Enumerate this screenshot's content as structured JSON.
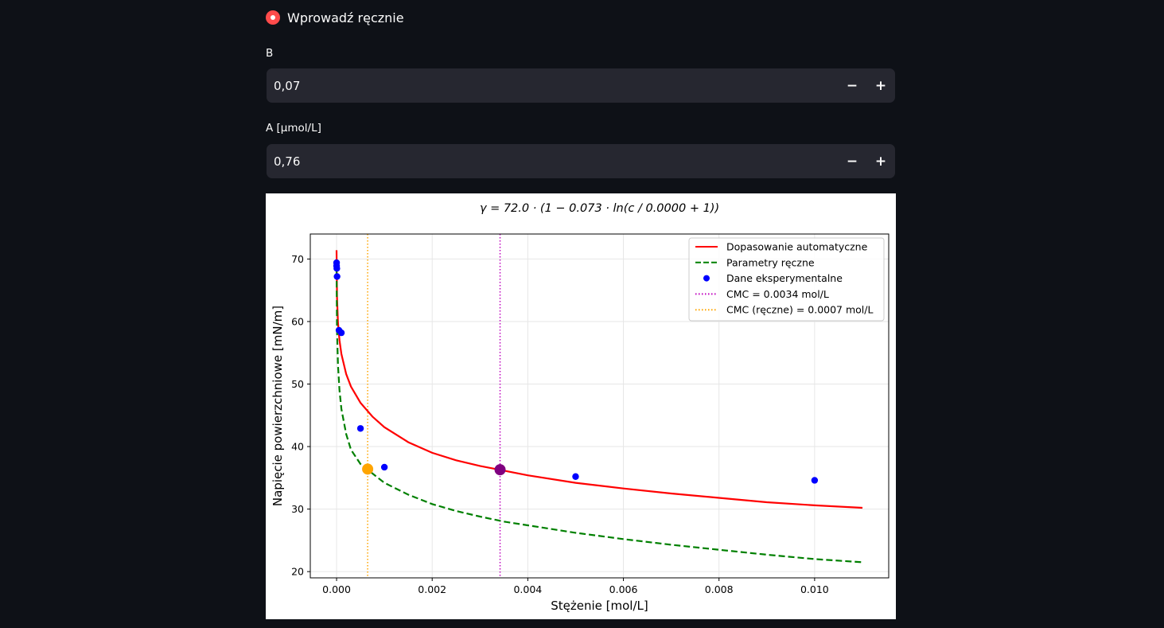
{
  "radio": {
    "label": "Wprowadź ręcznie",
    "selected": true
  },
  "fields": [
    {
      "label": "B",
      "value": "0,07",
      "minus": "−",
      "plus": "+"
    },
    {
      "label": "A [µmol/L]",
      "value": "0,76",
      "minus": "−",
      "plus": "+"
    }
  ],
  "colors": {
    "accent": "#ff4b4b",
    "background": "#0e1117",
    "input_bg": "#262730"
  },
  "chart_data": {
    "type": "line",
    "title": "γ = 72.0 · (1 − 0.073 · ln(c / 0.0000 + 1))",
    "xlabel": "Stężenie [mol/L]",
    "ylabel": "Napięcie powierzchniowe [mN/m]",
    "xlim": [
      -0.00055,
      0.01155
    ],
    "ylim": [
      19,
      74
    ],
    "xticks": [
      0.0,
      0.002,
      0.004,
      0.006,
      0.008,
      0.01
    ],
    "xtick_labels": [
      "0.000",
      "0.002",
      "0.004",
      "0.006",
      "0.008",
      "0.010"
    ],
    "yticks": [
      20,
      30,
      40,
      50,
      60,
      70
    ],
    "ytick_labels": [
      "20",
      "30",
      "40",
      "50",
      "60",
      "70"
    ],
    "grid": true,
    "legend_position": "top-right",
    "series": [
      {
        "name": "Dopasowanie automatyczne",
        "style": "solid",
        "color": "#ff0000",
        "x": [
          0.0,
          1e-05,
          3e-05,
          6e-05,
          0.0001,
          0.0002,
          0.0003,
          0.0005,
          0.00075,
          0.001,
          0.0015,
          0.002,
          0.0025,
          0.003,
          0.0034,
          0.004,
          0.005,
          0.006,
          0.007,
          0.008,
          0.009,
          0.01,
          0.011
        ],
        "y": [
          71.4,
          63.8,
          59.8,
          57.0,
          54.8,
          51.6,
          49.6,
          47.0,
          44.8,
          43.1,
          40.7,
          39.0,
          37.8,
          36.9,
          36.3,
          35.4,
          34.2,
          33.3,
          32.5,
          31.8,
          31.1,
          30.6,
          30.2
        ]
      },
      {
        "name": "Parametry ręczne",
        "style": "dashed",
        "color": "#008000",
        "x": [
          0.0,
          1e-05,
          3e-05,
          6e-05,
          0.0001,
          0.0002,
          0.0003,
          0.0005,
          0.00065,
          0.001,
          0.0015,
          0.002,
          0.0025,
          0.003,
          0.0035,
          0.004,
          0.005,
          0.006,
          0.007,
          0.008,
          0.009,
          0.01,
          0.011
        ],
        "y": [
          68.0,
          58.5,
          53.0,
          49.0,
          46.0,
          42.0,
          39.5,
          37.2,
          36.3,
          34.2,
          32.3,
          30.8,
          29.7,
          28.8,
          28.0,
          27.4,
          26.2,
          25.2,
          24.3,
          23.5,
          22.7,
          22.0,
          21.5
        ]
      }
    ],
    "scatter": {
      "name": "Dane eksperymentalne",
      "color": "#0000ff",
      "x": [
        0.0,
        0.0,
        5e-06,
        1e-05,
        5e-05,
        0.0001,
        0.0005,
        0.001,
        0.005,
        0.01
      ],
      "y": [
        69.4,
        68.9,
        68.5,
        67.2,
        58.6,
        58.2,
        42.9,
        36.7,
        35.2,
        34.6
      ]
    },
    "vlines": [
      {
        "name": "CMC = 0.0034 mol/L",
        "x": 0.00342,
        "color": "#bf00bf"
      },
      {
        "name": "CMC (ręczne) = 0.0007 mol/L",
        "x": 0.00065,
        "color": "#ffa500"
      }
    ],
    "highlight_points": [
      {
        "x": 0.00342,
        "y": 36.3,
        "color": "#800080"
      },
      {
        "x": 0.00065,
        "y": 36.4,
        "color": "#ffa500"
      }
    ]
  }
}
